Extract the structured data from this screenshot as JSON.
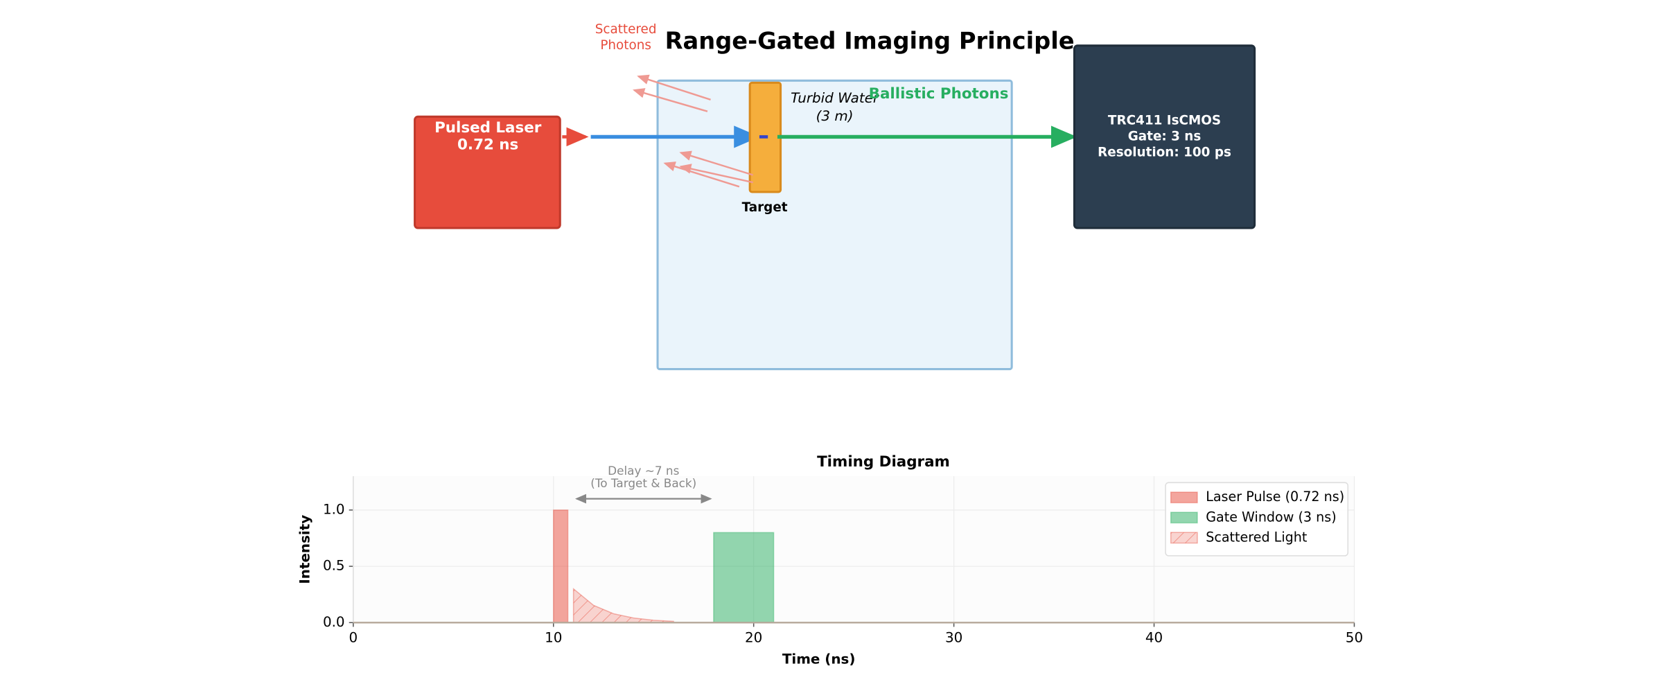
{
  "diagram": {
    "title": "Range-Gated Imaging Principle",
    "laser": [
      "Pulsed Laser",
      "0.72 ns"
    ],
    "scattered": [
      "Scattered",
      "Photons"
    ],
    "water": [
      "Turbid Water",
      "(3 m)"
    ],
    "ballistic": "Ballistic Photons",
    "target": "Target",
    "sensor": [
      "TRC411 IsCMOS",
      "Gate: 3 ns",
      "Resolution: 100 ps"
    ]
  },
  "chart_data": {
    "type": "area",
    "title": "Timing Diagram",
    "xlabel": "Time (ns)",
    "ylabel": "Intensity",
    "xlim": [
      0,
      50
    ],
    "ylim": [
      0,
      1.3
    ],
    "xticks": [
      0,
      10,
      20,
      30,
      40,
      50
    ],
    "yticks": [
      {
        "value": 0,
        "label": "0.0"
      },
      {
        "value": 0.5,
        "label": "0.5"
      },
      {
        "value": 1,
        "label": "1.0"
      }
    ],
    "grid": true,
    "legend": "upper right",
    "series": [
      {
        "name": "Laser Pulse (0.72 ns)",
        "color": "#e74c3c",
        "x": [
          10,
          10,
          10.72,
          10.72
        ],
        "values": [
          0,
          1,
          1,
          0
        ]
      },
      {
        "name": "Gate Window (3 ns)",
        "color": "#27ae60",
        "x": [
          18,
          18,
          21,
          21
        ],
        "values": [
          0,
          0.8,
          0.8,
          0
        ]
      },
      {
        "name": "Scattered Light",
        "color": "#e74c3c",
        "hatch": true,
        "x": [
          11,
          11,
          12,
          13,
          14,
          15,
          16
        ],
        "values": [
          0,
          0.3,
          0.154,
          0.079,
          0.041,
          0.021,
          0.011
        ]
      }
    ],
    "annotation": {
      "lines": [
        "Delay ~7 ns",
        "(To Target & Back)"
      ],
      "from": 11,
      "to": 18,
      "y": 1.1
    }
  }
}
